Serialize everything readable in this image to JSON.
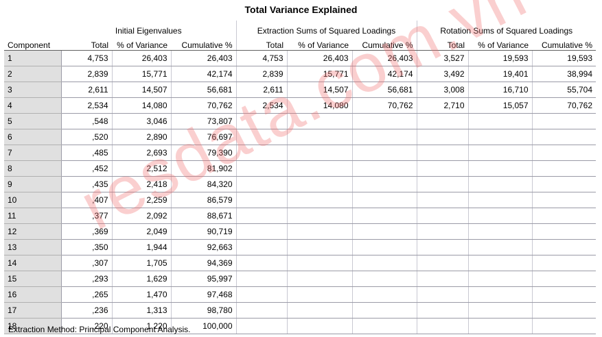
{
  "title": "Total Variance Explained",
  "component_header": "Component",
  "groups": [
    "Initial Eigenvalues",
    "Extraction Sums of Squared Loadings",
    "Rotation Sums of Squared Loadings"
  ],
  "subheaders": [
    "Total",
    "% of Variance",
    "Cumulative %",
    "Total",
    "% of Variance",
    "Cumulative %",
    "Total",
    "% of Variance",
    "Cumulative %"
  ],
  "rows": [
    [
      "1",
      "4,753",
      "26,403",
      "26,403",
      "4,753",
      "26,403",
      "26,403",
      "3,527",
      "19,593",
      "19,593"
    ],
    [
      "2",
      "2,839",
      "15,771",
      "42,174",
      "2,839",
      "15,771",
      "42,174",
      "3,492",
      "19,401",
      "38,994"
    ],
    [
      "3",
      "2,611",
      "14,507",
      "56,681",
      "2,611",
      "14,507",
      "56,681",
      "3,008",
      "16,710",
      "55,704"
    ],
    [
      "4",
      "2,534",
      "14,080",
      "70,762",
      "2,534",
      "14,080",
      "70,762",
      "2,710",
      "15,057",
      "70,762"
    ],
    [
      "5",
      ",548",
      "3,046",
      "73,807",
      "",
      "",
      "",
      "",
      "",
      ""
    ],
    [
      "6",
      ",520",
      "2,890",
      "76,697",
      "",
      "",
      "",
      "",
      "",
      ""
    ],
    [
      "7",
      ",485",
      "2,693",
      "79,390",
      "",
      "",
      "",
      "",
      "",
      ""
    ],
    [
      "8",
      ",452",
      "2,512",
      "81,902",
      "",
      "",
      "",
      "",
      "",
      ""
    ],
    [
      "9",
      ",435",
      "2,418",
      "84,320",
      "",
      "",
      "",
      "",
      "",
      ""
    ],
    [
      "10",
      ",407",
      "2,259",
      "86,579",
      "",
      "",
      "",
      "",
      "",
      ""
    ],
    [
      "11",
      ",377",
      "2,092",
      "88,671",
      "",
      "",
      "",
      "",
      "",
      ""
    ],
    [
      "12",
      ",369",
      "2,049",
      "90,719",
      "",
      "",
      "",
      "",
      "",
      ""
    ],
    [
      "13",
      ",350",
      "1,944",
      "92,663",
      "",
      "",
      "",
      "",
      "",
      ""
    ],
    [
      "14",
      ",307",
      "1,705",
      "94,369",
      "",
      "",
      "",
      "",
      "",
      ""
    ],
    [
      "15",
      ",293",
      "1,629",
      "95,997",
      "",
      "",
      "",
      "",
      "",
      ""
    ],
    [
      "16",
      ",265",
      "1,470",
      "97,468",
      "",
      "",
      "",
      "",
      "",
      ""
    ],
    [
      "17",
      ",236",
      "1,313",
      "98,780",
      "",
      "",
      "",
      "",
      "",
      ""
    ],
    [
      "18",
      ",220",
      "1,220",
      "100,000",
      "",
      "",
      "",
      "",
      "",
      ""
    ]
  ],
  "footnote": "Extraction Method: Principal Component Analysis.",
  "watermark": "resdata.com.vn"
}
